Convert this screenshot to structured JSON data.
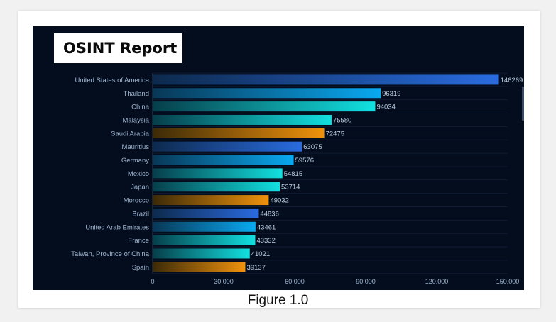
{
  "panel": {
    "title": "OSINT Report"
  },
  "caption": "Figure 1.0",
  "colors": {
    "background": "#040d1d",
    "label_text": "#9fb6d2",
    "value_text": "#bcd0e6",
    "axis_line": "#2a3a55",
    "grid": "#0f1c32"
  },
  "chart_data": {
    "type": "bar",
    "orientation": "horizontal",
    "title": "OSINT Report",
    "categories": [
      "United States of America",
      "Thailand",
      "China",
      "Malaysia",
      "Saudi Arabia",
      "Mauritius",
      "Germany",
      "Mexico",
      "Japan",
      "Morocco",
      "Brazil",
      "United Arab Emirates",
      "France",
      "Taiwan, Province of China",
      "Spain"
    ],
    "values": [
      146269,
      96319,
      94034,
      75580,
      72475,
      63075,
      59576,
      54815,
      53714,
      49032,
      44836,
      43461,
      43332,
      41021,
      39137
    ],
    "value_labels": [
      "146269",
      "96319",
      "94034",
      "75580",
      "72475",
      "63075",
      "59576",
      "54815",
      "53714",
      "49032",
      "44836",
      "43461",
      "43332",
      "41021",
      "39137"
    ],
    "bar_gradients": [
      [
        "#0d2a4d",
        "#2a6be0"
      ],
      [
        "#093756",
        "#09a9f0"
      ],
      [
        "#063e4a",
        "#12e0e0"
      ],
      [
        "#063e4a",
        "#12e0e0"
      ],
      [
        "#3b2a08",
        "#f0920c"
      ],
      [
        "#0d2a4d",
        "#2a6be0"
      ],
      [
        "#093756",
        "#09a9f0"
      ],
      [
        "#063e4a",
        "#12e0e0"
      ],
      [
        "#063e4a",
        "#12e0e0"
      ],
      [
        "#3b2a08",
        "#f0920c"
      ],
      [
        "#0d2a4d",
        "#2a6be0"
      ],
      [
        "#093756",
        "#09a9f0"
      ],
      [
        "#063e4a",
        "#12e0e0"
      ],
      [
        "#063e4a",
        "#12e0e0"
      ],
      [
        "#3b2a08",
        "#f0920c"
      ]
    ],
    "xlim": [
      0,
      150000
    ],
    "x_ticks": [
      0,
      30000,
      60000,
      90000,
      120000,
      150000
    ],
    "x_tick_labels": [
      "0",
      "30,000",
      "60,000",
      "90,000",
      "120,000",
      "150,000"
    ],
    "xlabel": "",
    "ylabel": "",
    "grid": true,
    "legend": false
  }
}
